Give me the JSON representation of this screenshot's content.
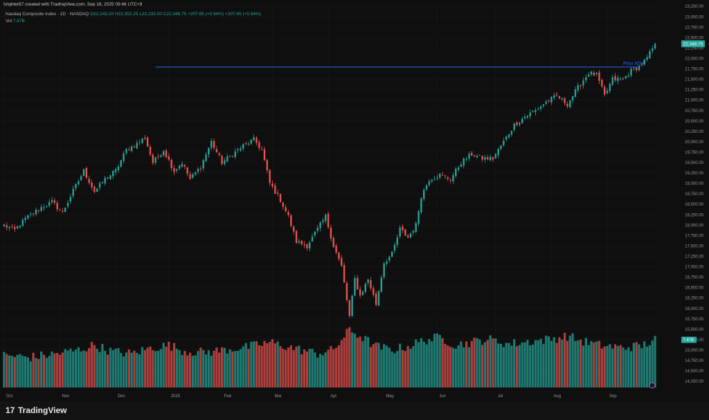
{
  "header": {
    "created_by": "brighter87 created with TradingView.com, Sep 16, 2025 09:46 UTC+9"
  },
  "legend": {
    "symbol": "Nasdaq Composite Index · 1D · NASDAQ",
    "ohlc": "O22,243.20 H22,352.25 L22,233.00 C22,348.75 +207.65 (+0.94%) +207.65 (+0.94%)",
    "volume_label": "Vol",
    "volume_value": "7.87B"
  },
  "price_tag": {
    "value": "22,348.75"
  },
  "annotation": {
    "text": "Prior ATH"
  },
  "volume_tag": {
    "value": "7.87B"
  },
  "brand": {
    "logo": "17",
    "name": "TradingView"
  },
  "colors": {
    "up": "#26a69a",
    "down": "#ef5350",
    "level_line": "#2962ff",
    "bg": "#0f0f0f",
    "grid": "#1c1c1c"
  },
  "chart_data": {
    "type": "candlestick",
    "title": "",
    "xlabel": "",
    "ylabel": "",
    "ylim": [
      14100,
      23300
    ],
    "y_ticks": [
      "23,250.00",
      "23,000.00",
      "22,750.00",
      "22,500.00",
      "22,250.00",
      "22,000.00",
      "21,750.00",
      "21,500.00",
      "21,250.00",
      "21,000.00",
      "20,750.00",
      "20,500.00",
      "20,250.00",
      "20,000.00",
      "19,750.00",
      "19,500.00",
      "19,250.00",
      "19,000.00",
      "18,750.00",
      "18,500.00",
      "18,250.00",
      "18,000.00",
      "17,750.00",
      "17,500.00",
      "17,250.00",
      "17,000.00",
      "16,750.00",
      "16,500.00",
      "16,250.00",
      "16,000.00",
      "15,750.00",
      "15,500.00",
      "15,250.00",
      "15,000.00",
      "14,750.00",
      "14,500.00",
      "14,250.00"
    ],
    "x_ticks": [
      "Oct",
      "Nov",
      "Dec",
      "2025",
      "Feb",
      "Mar",
      "Apr",
      "May",
      "Jun",
      "Jul",
      "Aug",
      "Sep"
    ],
    "grid": true,
    "level_line": {
      "value": 21790,
      "label": "Prior ATH"
    },
    "waypoints": [
      {
        "i": 0,
        "v": 17990
      },
      {
        "i": 4,
        "v": 17880
      },
      {
        "i": 8,
        "v": 18150
      },
      {
        "i": 14,
        "v": 18420
      },
      {
        "i": 18,
        "v": 18550
      },
      {
        "i": 22,
        "v": 18300
      },
      {
        "i": 26,
        "v": 18820
      },
      {
        "i": 30,
        "v": 19300
      },
      {
        "i": 34,
        "v": 18800
      },
      {
        "i": 38,
        "v": 19100
      },
      {
        "i": 42,
        "v": 19300
      },
      {
        "i": 46,
        "v": 19800
      },
      {
        "i": 50,
        "v": 19950
      },
      {
        "i": 53,
        "v": 20100
      },
      {
        "i": 56,
        "v": 19500
      },
      {
        "i": 60,
        "v": 19800
      },
      {
        "i": 64,
        "v": 19300
      },
      {
        "i": 67,
        "v": 19500
      },
      {
        "i": 70,
        "v": 19100
      },
      {
        "i": 74,
        "v": 19400
      },
      {
        "i": 78,
        "v": 20000
      },
      {
        "i": 82,
        "v": 19500
      },
      {
        "i": 86,
        "v": 19700
      },
      {
        "i": 90,
        "v": 19900
      },
      {
        "i": 94,
        "v": 20050
      },
      {
        "i": 97,
        "v": 19800
      },
      {
        "i": 100,
        "v": 19000
      },
      {
        "i": 104,
        "v": 18600
      },
      {
        "i": 107,
        "v": 18200
      },
      {
        "i": 110,
        "v": 17600
      },
      {
        "i": 114,
        "v": 17500
      },
      {
        "i": 118,
        "v": 17900
      },
      {
        "i": 121,
        "v": 18200
      },
      {
        "i": 124,
        "v": 17500
      },
      {
        "i": 127,
        "v": 17000
      },
      {
        "i": 130,
        "v": 15800
      },
      {
        "i": 132,
        "v": 16700
      },
      {
        "i": 134,
        "v": 16300
      },
      {
        "i": 137,
        "v": 16700
      },
      {
        "i": 140,
        "v": 16100
      },
      {
        "i": 143,
        "v": 17100
      },
      {
        "i": 146,
        "v": 17300
      },
      {
        "i": 149,
        "v": 17900
      },
      {
        "i": 152,
        "v": 17700
      },
      {
        "i": 155,
        "v": 18000
      },
      {
        "i": 157,
        "v": 18700
      },
      {
        "i": 160,
        "v": 19100
      },
      {
        "i": 164,
        "v": 19200
      },
      {
        "i": 168,
        "v": 19100
      },
      {
        "i": 172,
        "v": 19500
      },
      {
        "i": 176,
        "v": 19700
      },
      {
        "i": 180,
        "v": 19600
      },
      {
        "i": 184,
        "v": 19600
      },
      {
        "i": 188,
        "v": 20000
      },
      {
        "i": 192,
        "v": 20400
      },
      {
        "i": 196,
        "v": 20600
      },
      {
        "i": 200,
        "v": 20750
      },
      {
        "i": 204,
        "v": 20950
      },
      {
        "i": 208,
        "v": 21100
      },
      {
        "i": 212,
        "v": 20900
      },
      {
        "i": 216,
        "v": 21300
      },
      {
        "i": 220,
        "v": 21650
      },
      {
        "i": 223,
        "v": 21600
      },
      {
        "i": 226,
        "v": 21100
      },
      {
        "i": 229,
        "v": 21500
      },
      {
        "i": 233,
        "v": 21500
      },
      {
        "i": 236,
        "v": 21700
      },
      {
        "i": 239,
        "v": 21800
      },
      {
        "i": 242,
        "v": 22000
      },
      {
        "i": 245,
        "v": 22348.75
      }
    ],
    "volume_ylim": [
      0,
      16
    ],
    "volume_waypoints": [
      {
        "i": 0,
        "v": 5.3
      },
      {
        "i": 10,
        "v": 5.0
      },
      {
        "i": 20,
        "v": 5.6
      },
      {
        "i": 28,
        "v": 6.2
      },
      {
        "i": 34,
        "v": 7.0
      },
      {
        "i": 40,
        "v": 6.0
      },
      {
        "i": 48,
        "v": 5.6
      },
      {
        "i": 55,
        "v": 6.5
      },
      {
        "i": 62,
        "v": 7.0
      },
      {
        "i": 68,
        "v": 6.0
      },
      {
        "i": 76,
        "v": 5.8
      },
      {
        "i": 84,
        "v": 6.3
      },
      {
        "i": 92,
        "v": 6.7
      },
      {
        "i": 100,
        "v": 7.5
      },
      {
        "i": 106,
        "v": 6.8
      },
      {
        "i": 112,
        "v": 6.2
      },
      {
        "i": 118,
        "v": 5.6
      },
      {
        "i": 124,
        "v": 6.2
      },
      {
        "i": 130,
        "v": 9.5
      },
      {
        "i": 134,
        "v": 8.5
      },
      {
        "i": 140,
        "v": 6.8
      },
      {
        "i": 146,
        "v": 6.2
      },
      {
        "i": 152,
        "v": 6.8
      },
      {
        "i": 158,
        "v": 7.8
      },
      {
        "i": 164,
        "v": 8.3
      },
      {
        "i": 170,
        "v": 7.0
      },
      {
        "i": 176,
        "v": 7.5
      },
      {
        "i": 182,
        "v": 8.0
      },
      {
        "i": 190,
        "v": 7.2
      },
      {
        "i": 198,
        "v": 7.6
      },
      {
        "i": 206,
        "v": 8.0
      },
      {
        "i": 212,
        "v": 8.5
      },
      {
        "i": 218,
        "v": 7.6
      },
      {
        "i": 224,
        "v": 7.0
      },
      {
        "i": 232,
        "v": 6.6
      },
      {
        "i": 240,
        "v": 6.9
      },
      {
        "i": 245,
        "v": 7.87
      }
    ]
  }
}
